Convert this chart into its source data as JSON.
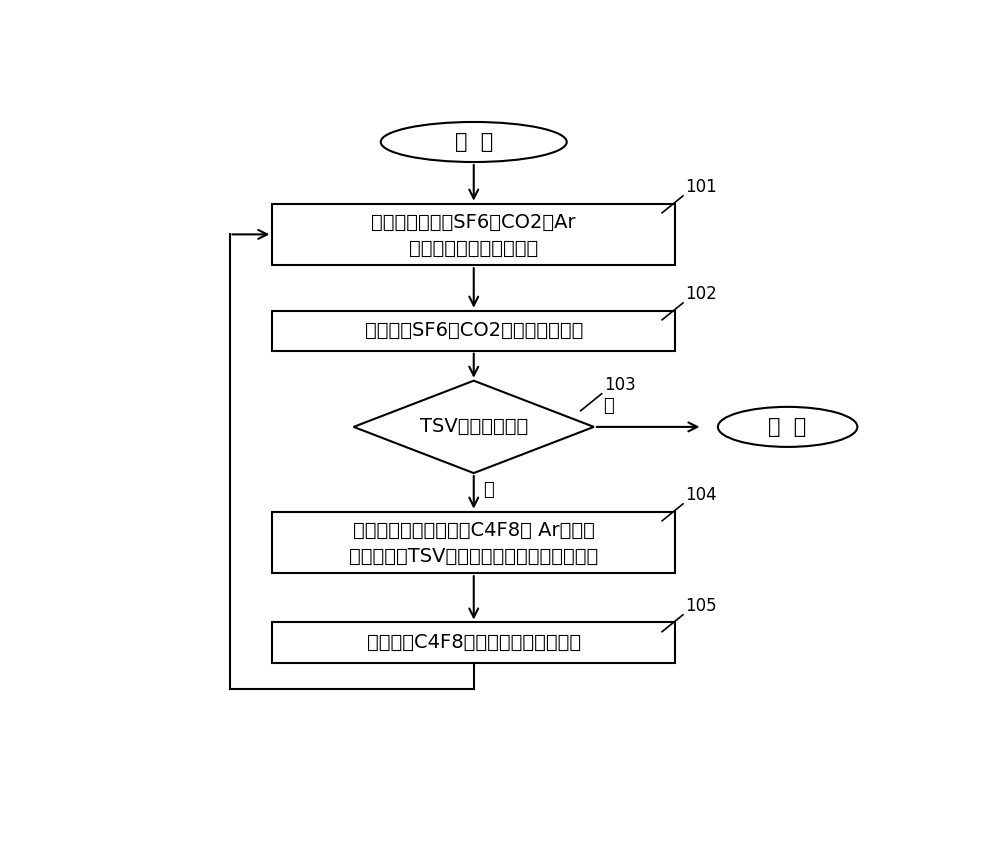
{
  "bg_color": "#ffffff",
  "start_text": "开  始",
  "end_text": "结  束",
  "box101_line1": "刻蚀步骤：通入SF6、CO2和Ar",
  "box101_line2": "对体硅进行反应离子刻蚀",
  "box102_text": "停止通入SF6、CO2，刻蚀步骤终止",
  "diamond103_text": "TSV刻蚀是否结束",
  "box104_line1": "聚合物沉积步骤：通入C4F8和 Ar，在已",
  "box104_line2": "刻蚀形成的TSV部分的侧壁沉积聚合物层薄膜",
  "box105_text": "停止通入C4F8，聚合物沉积步骤终止",
  "label101": "101",
  "label102": "102",
  "label103": "103",
  "label104": "104",
  "label105": "105",
  "yes_text": "是",
  "no_text": "否",
  "arrow_color": "#000000",
  "box_edge_color": "#000000",
  "box_face_color": "#ffffff",
  "text_color": "#000000",
  "fontsize_main": 14,
  "fontsize_label": 12
}
